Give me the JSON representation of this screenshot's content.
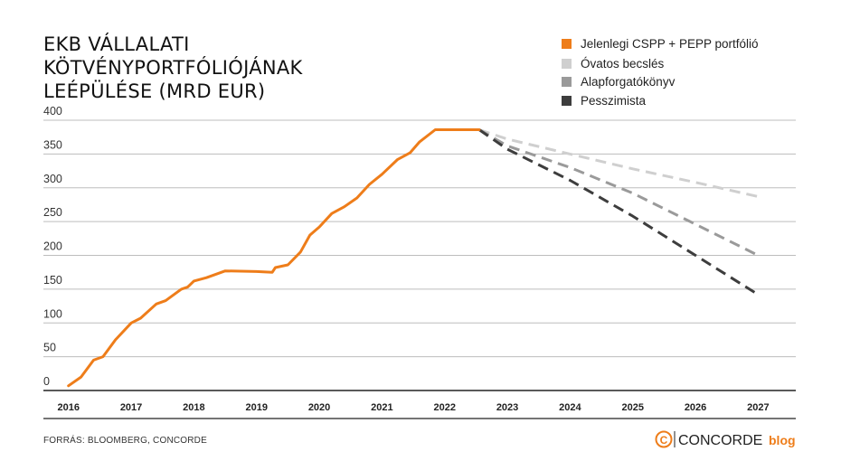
{
  "chart_data": {
    "type": "line",
    "title_lines": [
      "EKB VÁLLALATI",
      "KÖTVÉNYPORTFÓLIÓJÁNAK",
      "LEÉPÜLÉSE (MRD EUR)"
    ],
    "ylim": [
      0,
      400
    ],
    "yticks": [
      0,
      50,
      100,
      150,
      200,
      250,
      300,
      350,
      400
    ],
    "ytick_labels": [
      "0",
      "50",
      "100",
      "150",
      "200",
      "250",
      "300",
      "350",
      "400"
    ],
    "xlim": [
      2015.6,
      2027.6
    ],
    "xticks": [
      2016,
      2017,
      2018,
      2019,
      2020,
      2021,
      2022,
      2023,
      2024,
      2025,
      2026,
      2027
    ],
    "xtick_labels": [
      "2016",
      "2017",
      "2018",
      "2019",
      "2020",
      "2021",
      "2022",
      "2023",
      "2024",
      "2025",
      "2026",
      "2027"
    ],
    "series": [
      {
        "name": "Jelenlegi CSPP + PEPP portfólió",
        "color": "#ee7d1a",
        "style": "solid",
        "points": [
          [
            2016.0,
            7
          ],
          [
            2016.2,
            20
          ],
          [
            2016.4,
            45
          ],
          [
            2016.55,
            50
          ],
          [
            2016.75,
            75
          ],
          [
            2017.0,
            100
          ],
          [
            2017.15,
            107
          ],
          [
            2017.4,
            128
          ],
          [
            2017.55,
            133
          ],
          [
            2017.8,
            150
          ],
          [
            2017.9,
            153
          ],
          [
            2018.0,
            162
          ],
          [
            2018.2,
            167
          ],
          [
            2018.5,
            177
          ],
          [
            2019.0,
            176
          ],
          [
            2019.25,
            175
          ],
          [
            2019.3,
            182
          ],
          [
            2019.5,
            186
          ],
          [
            2019.7,
            205
          ],
          [
            2019.85,
            230
          ],
          [
            2020.0,
            242
          ],
          [
            2020.2,
            262
          ],
          [
            2020.4,
            272
          ],
          [
            2020.6,
            285
          ],
          [
            2020.8,
            305
          ],
          [
            2021.0,
            320
          ],
          [
            2021.25,
            342
          ],
          [
            2021.45,
            352
          ],
          [
            2021.6,
            368
          ],
          [
            2021.85,
            386
          ],
          [
            2022.0,
            386
          ],
          [
            2022.2,
            386
          ],
          [
            2022.55,
            386
          ]
        ]
      },
      {
        "name": "Óvatos becslés",
        "color": "#cfcfcf",
        "style": "dashed",
        "points": [
          [
            2022.55,
            386
          ],
          [
            2023.0,
            372
          ],
          [
            2024.0,
            350
          ],
          [
            2025.0,
            328
          ],
          [
            2026.0,
            308
          ],
          [
            2027.0,
            287
          ]
        ]
      },
      {
        "name": "Alapforgatókönyv",
        "color": "#9a9a9a",
        "style": "dashed",
        "points": [
          [
            2022.55,
            386
          ],
          [
            2023.0,
            362
          ],
          [
            2024.0,
            330
          ],
          [
            2025.0,
            292
          ],
          [
            2026.0,
            246
          ],
          [
            2027.0,
            200
          ]
        ]
      },
      {
        "name": "Pesszimista",
        "color": "#3d3d3d",
        "style": "dashed",
        "points": [
          [
            2022.55,
            386
          ],
          [
            2023.0,
            357
          ],
          [
            2024.0,
            311
          ],
          [
            2025.0,
            258
          ],
          [
            2026.0,
            200
          ],
          [
            2027.0,
            142
          ]
        ]
      }
    ],
    "legend": [
      {
        "label": "Jelenlegi CSPP + PEPP portfólió",
        "color": "#ee7d1a"
      },
      {
        "label": "Óvatos becslés",
        "color": "#cfcfcf"
      },
      {
        "label": "Alapforgatókönyv",
        "color": "#9a9a9a"
      },
      {
        "label": "Pesszimista",
        "color": "#3d3d3d"
      }
    ],
    "legend_position": "top-right",
    "grid": true
  },
  "footer": {
    "source": "FORRÁS: BLOOMBERG, CONCORDE",
    "brand_mark": "C",
    "brand_name": "CONCORDE",
    "brand_blog": "blog"
  },
  "colors": {
    "accent": "#ee7d1a",
    "grid": "#bdbdbd",
    "axis": "#222222"
  }
}
